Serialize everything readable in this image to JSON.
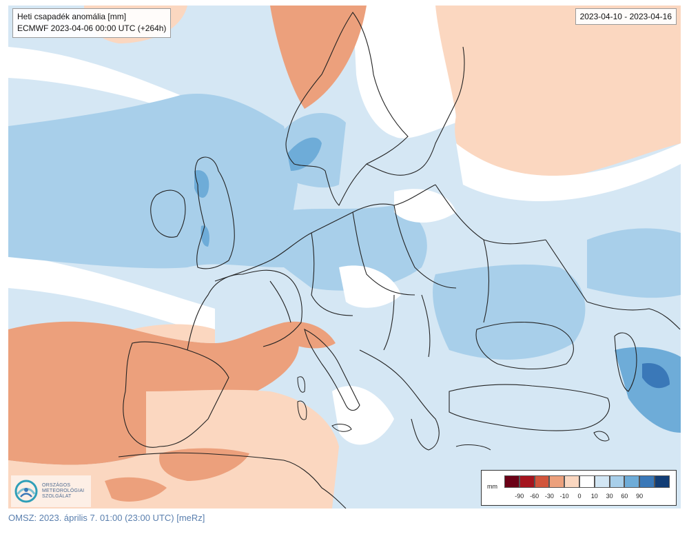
{
  "title": {
    "line1": "Heti csapadék anomália [mm]",
    "line2": "ECMWF 2023-04-06 00:00 UTC (+264h)"
  },
  "date_range": "2023-04-10 - 2023-04-16",
  "logo": {
    "lines": [
      "ORSZÁGOS",
      "METEOROLÓGIAI",
      "SZOLGÁLAT"
    ]
  },
  "legend": {
    "unit": "mm",
    "colors": [
      "#6b0016",
      "#a5141e",
      "#d2553c",
      "#eca07c",
      "#fbd7c0",
      "#ffffff",
      "#d2e6f4",
      "#a8cfea",
      "#6eacd8",
      "#3a78b8",
      "#123d75"
    ],
    "labels": [
      "-90",
      "-60",
      "-30",
      "-10",
      "0",
      "10",
      "30",
      "60",
      "90"
    ]
  },
  "footer": "OMSZ: 2023. április 7. 01:00 (23:00 UTC) [meRz]"
}
